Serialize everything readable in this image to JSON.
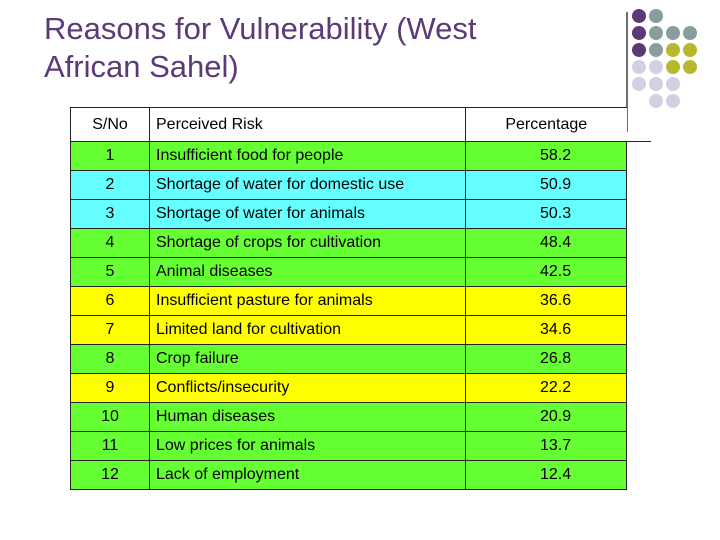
{
  "slide": {
    "title_line1": "Reasons for Vulnerability (West",
    "title_line2": "African Sahel)"
  },
  "palette": {
    "title_color": "#5b3a77",
    "dot_colors": [
      "#5b3a77",
      "#8a9c9c",
      "#b8b82e",
      "#d2d0e2"
    ]
  },
  "table": {
    "headers": {
      "no": "S/No",
      "risk": "Perceived Risk",
      "pct": "Percentage"
    },
    "rows": [
      {
        "no": "1",
        "risk": "Insufficient food for people",
        "pct": "58.2",
        "color": "green"
      },
      {
        "no": "2",
        "risk": "Shortage of water for domestic use",
        "pct": "50.9",
        "color": "cyan"
      },
      {
        "no": "3",
        "risk": "Shortage of water for animals",
        "pct": "50.3",
        "color": "cyan"
      },
      {
        "no": "4",
        "risk": "Shortage of crops for cultivation",
        "pct": "48.4",
        "color": "green"
      },
      {
        "no": "5",
        "risk": "Animal diseases",
        "pct": "42.5",
        "color": "green"
      },
      {
        "no": "6",
        "risk": "Insufficient pasture for animals",
        "pct": "36.6",
        "color": "yellow"
      },
      {
        "no": "7",
        "risk": "Limited land for cultivation",
        "pct": "34.6",
        "color": "yellow"
      },
      {
        "no": "8",
        "risk": "Crop failure",
        "pct": "26.8",
        "color": "green"
      },
      {
        "no": "9",
        "risk": "Conflicts/insecurity",
        "pct": "22.2",
        "color": "yellow"
      },
      {
        "no": "10",
        "risk": "Human diseases",
        "pct": "20.9",
        "color": "green"
      },
      {
        "no": "11",
        "risk": "Low prices for animals",
        "pct": "13.7",
        "color": "green"
      },
      {
        "no": "12",
        "risk": "Lack of employment",
        "pct": "12.4",
        "color": "green"
      }
    ]
  }
}
